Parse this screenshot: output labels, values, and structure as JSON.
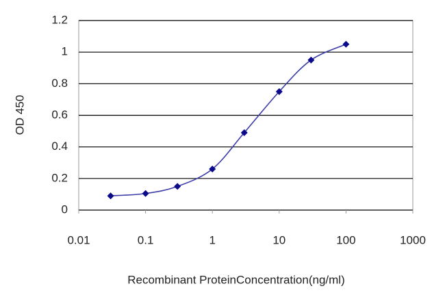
{
  "chart_data": {
    "type": "line",
    "x_label": "Recombinant ProteinConcentration(ng/ml)",
    "y_label": "OD 450",
    "x": [
      0.03,
      0.1,
      0.3,
      1,
      3,
      10,
      30,
      100
    ],
    "series": [
      {
        "color": "#3a3aa8",
        "marker_color": "#0a0a8a",
        "values": [
          0.09,
          0.105,
          0.15,
          0.26,
          0.49,
          0.75,
          0.95,
          1.05
        ]
      }
    ],
    "x_log": true,
    "xlim": [
      0.01,
      1000
    ],
    "xticks": [
      0.01,
      0.1,
      1,
      10,
      100,
      1000
    ],
    "ylim": [
      0,
      1.2
    ],
    "yticks": [
      0,
      0.2,
      0.4,
      0.6,
      0.8,
      1,
      1.2
    ],
    "grid": true
  }
}
